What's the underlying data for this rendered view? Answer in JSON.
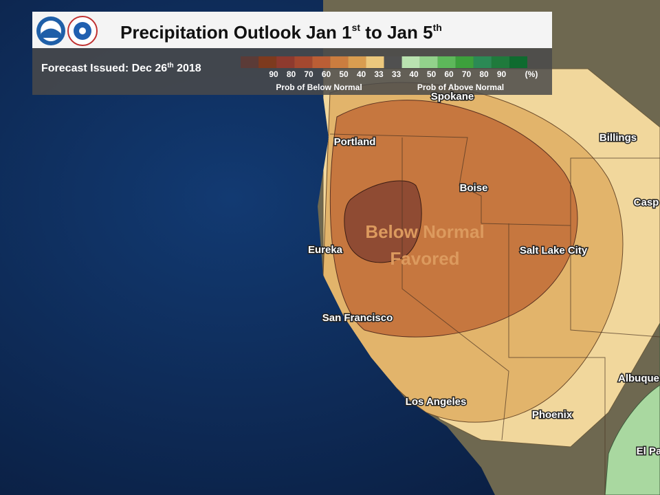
{
  "header": {
    "title_main": "Precipitation Outlook Jan 1",
    "title_sup1": "st",
    "title_mid": " to Jan 5",
    "title_sup2": "th",
    "issued_main": "Forecast Issued: Dec 26",
    "issued_sup": "th",
    "issued_year": " 2018"
  },
  "legend": {
    "swatch_colors": [
      "#5b3b37",
      "#7d3a1e",
      "#8e3a2e",
      "#a4482f",
      "#bb5e35",
      "#cb7d3f",
      "#d99d50",
      "#ecc87d",
      "#505050",
      "#b9e2b0",
      "#92d18b",
      "#5db85a",
      "#3ca03c",
      "#2b8a55",
      "#1f7a3c",
      "#0f6b2f"
    ],
    "labels": [
      "90",
      "80",
      "70",
      "60",
      "50",
      "40",
      "33",
      "33",
      "40",
      "50",
      "60",
      "70",
      "80",
      "90"
    ],
    "unit": "(%)",
    "below_caption": "Prob of Below Normal",
    "above_caption": "Prob of Above Normal"
  },
  "map": {
    "cities": [
      "Spokane",
      "Portland",
      "Billings",
      "Boise",
      "Casp",
      "Eureka",
      "Salt Lake City",
      "San Francisco",
      "Los Angeles",
      "Phoenix",
      "Albuque",
      "El Pa"
    ],
    "annotation_line1": "Below Normal",
    "annotation_line2": "Favored"
  }
}
